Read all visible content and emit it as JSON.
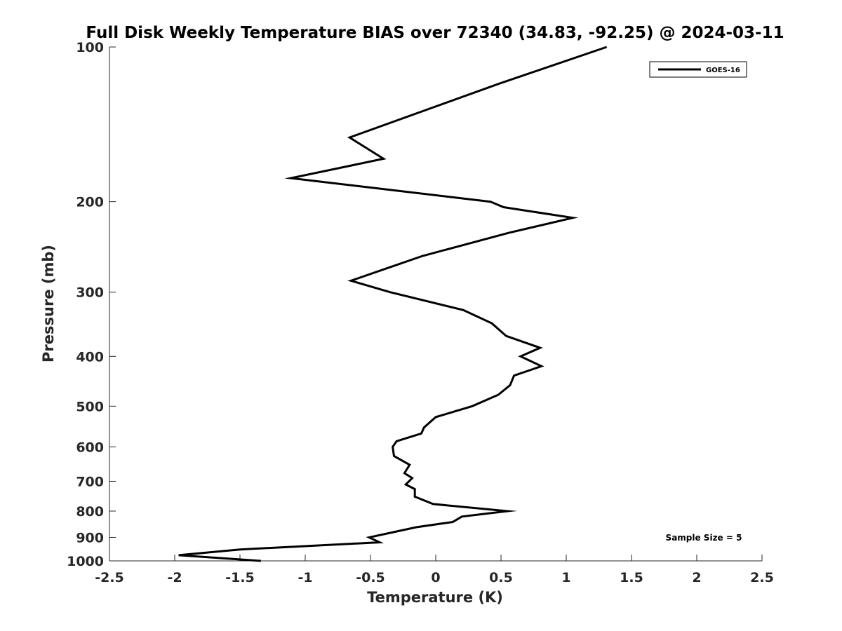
{
  "chart_data": {
    "type": "line",
    "title": "Full Disk Weekly Temperature BIAS over 72340 (34.83, -92.25) @ 2024-03-11",
    "xlabel": "Temperature (K)",
    "ylabel": "Pressure (mb)",
    "xlim": [
      -2.5,
      2.5
    ],
    "ylim": [
      100,
      1000
    ],
    "y_scale": "log",
    "y_reversed": true,
    "x_ticks": [
      "-2.5",
      "-2",
      "-1.5",
      "-1",
      "-0.5",
      "0",
      "0.5",
      "1",
      "1.5",
      "2",
      "2.5"
    ],
    "y_ticks": [
      "100",
      "200",
      "300",
      "400",
      "500",
      "600",
      "700",
      "800",
      "900",
      "1000"
    ],
    "grid": false,
    "legend_position": "top-right",
    "annotation": "Sample Size = 5",
    "series": [
      {
        "name": "GOES-16",
        "color": "#000000",
        "points": [
          {
            "t": 1.31,
            "p": 100
          },
          {
            "t": 0.48,
            "p": 118
          },
          {
            "t": -0.66,
            "p": 150
          },
          {
            "t": -0.4,
            "p": 165
          },
          {
            "t": -1.11,
            "p": 180
          },
          {
            "t": 0.42,
            "p": 200
          },
          {
            "t": 0.52,
            "p": 205
          },
          {
            "t": 1.05,
            "p": 215
          },
          {
            "t": 0.56,
            "p": 230
          },
          {
            "t": -0.1,
            "p": 255
          },
          {
            "t": -0.65,
            "p": 285
          },
          {
            "t": -0.35,
            "p": 300
          },
          {
            "t": 0.21,
            "p": 325
          },
          {
            "t": 0.43,
            "p": 345
          },
          {
            "t": 0.54,
            "p": 365
          },
          {
            "t": 0.8,
            "p": 385
          },
          {
            "t": 0.65,
            "p": 400
          },
          {
            "t": 0.81,
            "p": 418
          },
          {
            "t": 0.6,
            "p": 436
          },
          {
            "t": 0.57,
            "p": 455
          },
          {
            "t": 0.48,
            "p": 475
          },
          {
            "t": 0.28,
            "p": 500
          },
          {
            "t": 0.0,
            "p": 525
          },
          {
            "t": -0.09,
            "p": 550
          },
          {
            "t": -0.11,
            "p": 565
          },
          {
            "t": -0.3,
            "p": 585
          },
          {
            "t": -0.33,
            "p": 600
          },
          {
            "t": -0.32,
            "p": 625
          },
          {
            "t": -0.2,
            "p": 650
          },
          {
            "t": -0.24,
            "p": 675
          },
          {
            "t": -0.18,
            "p": 690
          },
          {
            "t": -0.23,
            "p": 710
          },
          {
            "t": -0.16,
            "p": 725
          },
          {
            "t": -0.16,
            "p": 750
          },
          {
            "t": -0.02,
            "p": 775
          },
          {
            "t": 0.55,
            "p": 800
          },
          {
            "t": 0.2,
            "p": 820
          },
          {
            "t": 0.13,
            "p": 840
          },
          {
            "t": -0.15,
            "p": 860
          },
          {
            "t": -0.51,
            "p": 900
          },
          {
            "t": -0.43,
            "p": 920
          },
          {
            "t": -1.5,
            "p": 950
          },
          {
            "t": -1.97,
            "p": 975
          },
          {
            "t": -1.34,
            "p": 1000
          }
        ]
      }
    ]
  }
}
